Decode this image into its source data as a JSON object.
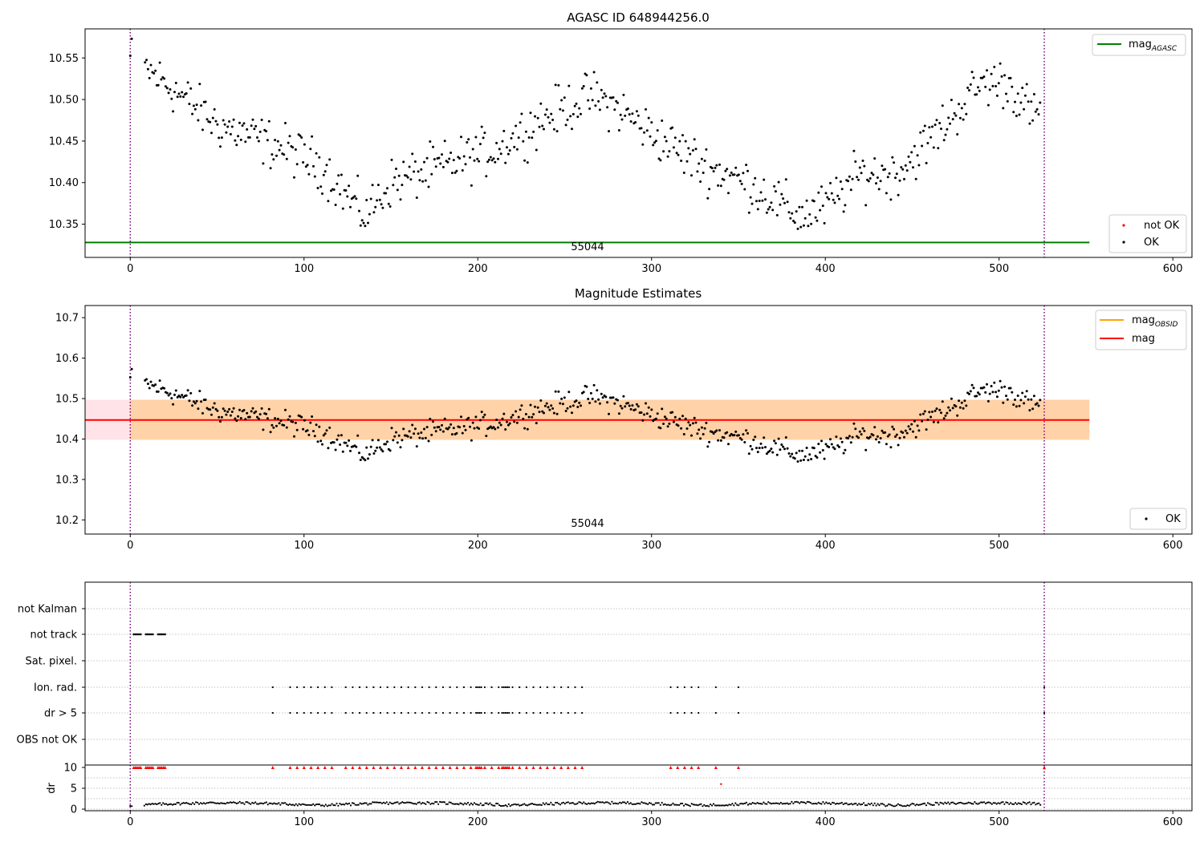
{
  "chart_data": [
    {
      "type": "scatter",
      "title": "AGASC ID 648944256.0",
      "annotation": "55044",
      "xlim": [
        -26,
        611
      ],
      "ylim": [
        10.31,
        10.585
      ],
      "xticks": [
        0,
        100,
        200,
        300,
        400,
        500,
        600
      ],
      "yticks": [
        10.35,
        10.4,
        10.45,
        10.5,
        10.55
      ],
      "yticklabels": [
        "10.35",
        "10.40",
        "10.45",
        "10.50",
        "10.55"
      ],
      "grid": false,
      "vlines": [
        0,
        526
      ],
      "hline": {
        "y": 10.328,
        "x_from": -26,
        "x_to": 552,
        "color": "#008000"
      },
      "legend_top": [
        {
          "label": "mag",
          "sub": "AGASC",
          "color": "#008000"
        }
      ],
      "legend_bottom": [
        {
          "label": "not OK",
          "color": "#ff0000"
        },
        {
          "label": "OK",
          "color": "#000000"
        }
      ],
      "legend_top_placement": "top-right",
      "legend_bottom_placement": "bottom-right"
    },
    {
      "type": "scatter",
      "title": "Magnitude Estimates",
      "annotation": "55044",
      "xlim": [
        -26,
        611
      ],
      "ylim": [
        10.165,
        10.73
      ],
      "xticks": [
        0,
        100,
        200,
        300,
        400,
        500,
        600
      ],
      "yticks": [
        10.2,
        10.3,
        10.4,
        10.5,
        10.6,
        10.7
      ],
      "yticklabels": [
        "10.2",
        "10.3",
        "10.4",
        "10.5",
        "10.6",
        "10.7"
      ],
      "grid": false,
      "vlines": [
        0,
        526
      ],
      "mag_line": {
        "y": 10.447,
        "x_from": -26,
        "x_to": 552,
        "color": "#ff0000"
      },
      "mag_band": {
        "y_low": 10.398,
        "y_high": 10.497,
        "x_from": -26,
        "x_to": 552,
        "color": "#ffc0cb"
      },
      "obsid_band": {
        "y_low": 10.398,
        "y_high": 10.497,
        "x_from": 0,
        "x_to": 552,
        "color": "#ffa500"
      },
      "legend_top": [
        {
          "label": "mag",
          "sub": "OBSID",
          "color": "#ffa500"
        },
        {
          "label": "mag",
          "sub": "",
          "color": "#ff0000"
        }
      ],
      "legend_bottom": [
        {
          "label": "OK",
          "color": "#000000"
        }
      ],
      "legend_top_placement": "top-right",
      "legend_bottom_placement": "bottom-right"
    },
    {
      "type": "scatter",
      "xlim": [
        -26,
        611
      ],
      "xticks": [
        0,
        100,
        200,
        300,
        400,
        500,
        600
      ],
      "flag_labels": [
        "not Kalman",
        "not track",
        "Sat. pixel.",
        "Ion. rad.",
        "dr > 5",
        "OBS not OK"
      ],
      "dr_ylabel": "dr",
      "dr_ylim": [
        -0.5,
        10.5
      ],
      "dr_yticks": [
        0,
        5,
        10
      ],
      "vlines": [
        0,
        526
      ],
      "grid": true,
      "not_track_x": [
        2,
        3,
        4,
        5,
        6,
        9,
        10,
        11,
        12,
        13,
        16,
        17,
        18,
        19,
        20
      ],
      "ion_rad_x": [
        82,
        92,
        96,
        100,
        104,
        108,
        112,
        116,
        124,
        128,
        132,
        136,
        140,
        144,
        148,
        152,
        156,
        160,
        164,
        168,
        172,
        176,
        180,
        184,
        188,
        192,
        196,
        199,
        200,
        201,
        202,
        204,
        208,
        212,
        214,
        215,
        216,
        217,
        218,
        220,
        224,
        228,
        232,
        236,
        240,
        244,
        248,
        252,
        256,
        260,
        311,
        315,
        319,
        323,
        327,
        337,
        350,
        526
      ],
      "dr5_x": [
        82,
        92,
        96,
        100,
        104,
        108,
        112,
        116,
        124,
        128,
        132,
        136,
        140,
        144,
        148,
        152,
        156,
        160,
        164,
        168,
        172,
        176,
        180,
        184,
        188,
        192,
        196,
        199,
        200,
        201,
        202,
        204,
        208,
        212,
        214,
        215,
        216,
        217,
        218,
        220,
        224,
        228,
        232,
        236,
        240,
        244,
        248,
        252,
        256,
        260,
        311,
        315,
        319,
        323,
        327,
        337,
        350,
        526
      ],
      "dr_outlier": {
        "x": 340,
        "y": 6
      }
    }
  ]
}
